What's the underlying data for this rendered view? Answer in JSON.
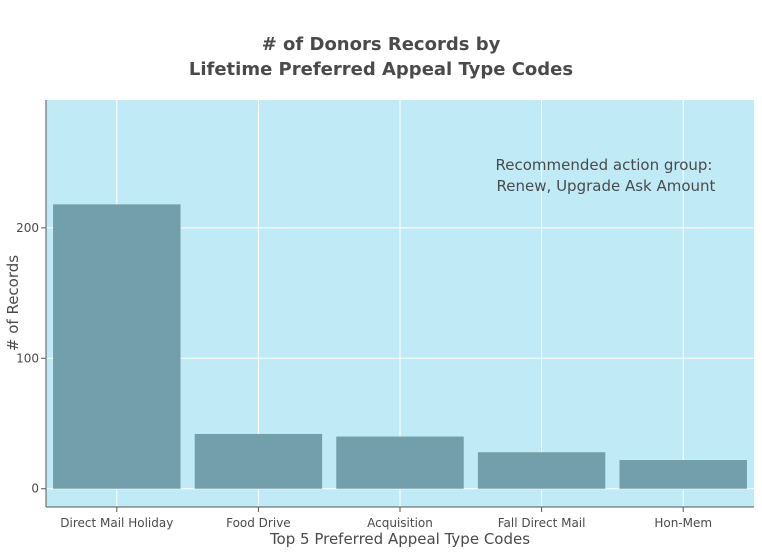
{
  "chart_data": {
    "type": "bar",
    "title_line1": "# of Donors Records by",
    "title_line2": "Lifetime Preferred Appeal Type Codes",
    "xlabel": "Top 5 Preferred Appeal Type Codes",
    "ylabel": "# of Records",
    "annotation_line1": "Recommended action group:",
    "annotation_line2": "Renew, Upgrade Ask Amount",
    "categories": [
      "Direct Mail Holiday",
      "Food Drive",
      "Acquisition",
      "Fall Direct Mail",
      "Hon-Mem"
    ],
    "values": [
      218,
      42,
      40,
      28,
      22
    ],
    "ylim": [
      -14,
      298
    ],
    "yticks": [
      0,
      100,
      200
    ],
    "grid": true,
    "colors": {
      "plot_bg": "#c1eaf7",
      "bar": "#739eab",
      "grid": "#ffffff",
      "text": "#4a4a4a",
      "axis": "#555555"
    }
  }
}
